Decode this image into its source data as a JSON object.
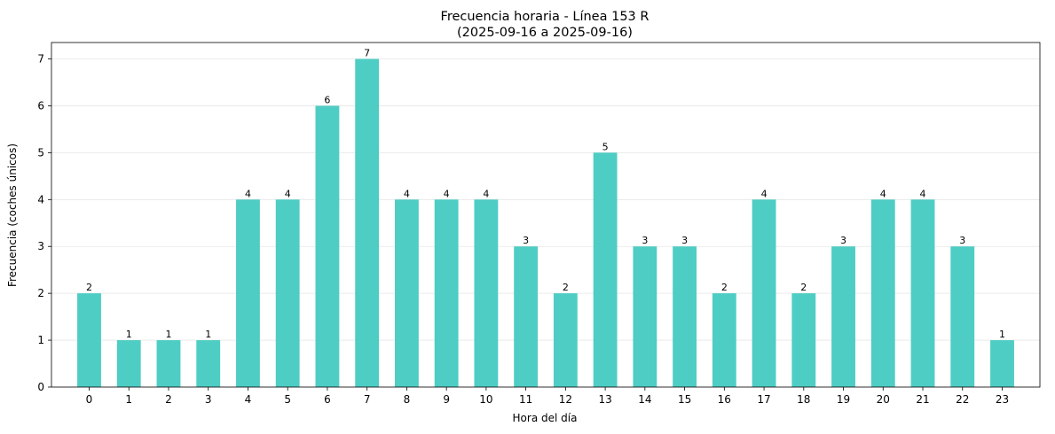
{
  "chart_data": {
    "type": "bar",
    "title": "Frecuencia horaria - Línea 153 R",
    "subtitle": "(2025-09-16 a 2025-09-16)",
    "xlabel": "Hora del día",
    "ylabel": "Frecuencia (coches únicos)",
    "categories": [
      "0",
      "1",
      "2",
      "3",
      "4",
      "5",
      "6",
      "7",
      "8",
      "9",
      "10",
      "11",
      "12",
      "13",
      "14",
      "15",
      "16",
      "17",
      "18",
      "19",
      "20",
      "21",
      "22",
      "23"
    ],
    "values": [
      2,
      1,
      1,
      1,
      4,
      4,
      6,
      7,
      4,
      4,
      4,
      3,
      2,
      5,
      3,
      3,
      2,
      4,
      2,
      3,
      4,
      4,
      3,
      1
    ],
    "ylim": [
      0,
      7.35
    ],
    "yticks": [
      0,
      1,
      2,
      3,
      4,
      5,
      6,
      7
    ],
    "grid": "y",
    "bar_color": "#4ecdc4",
    "data_labels": true
  }
}
